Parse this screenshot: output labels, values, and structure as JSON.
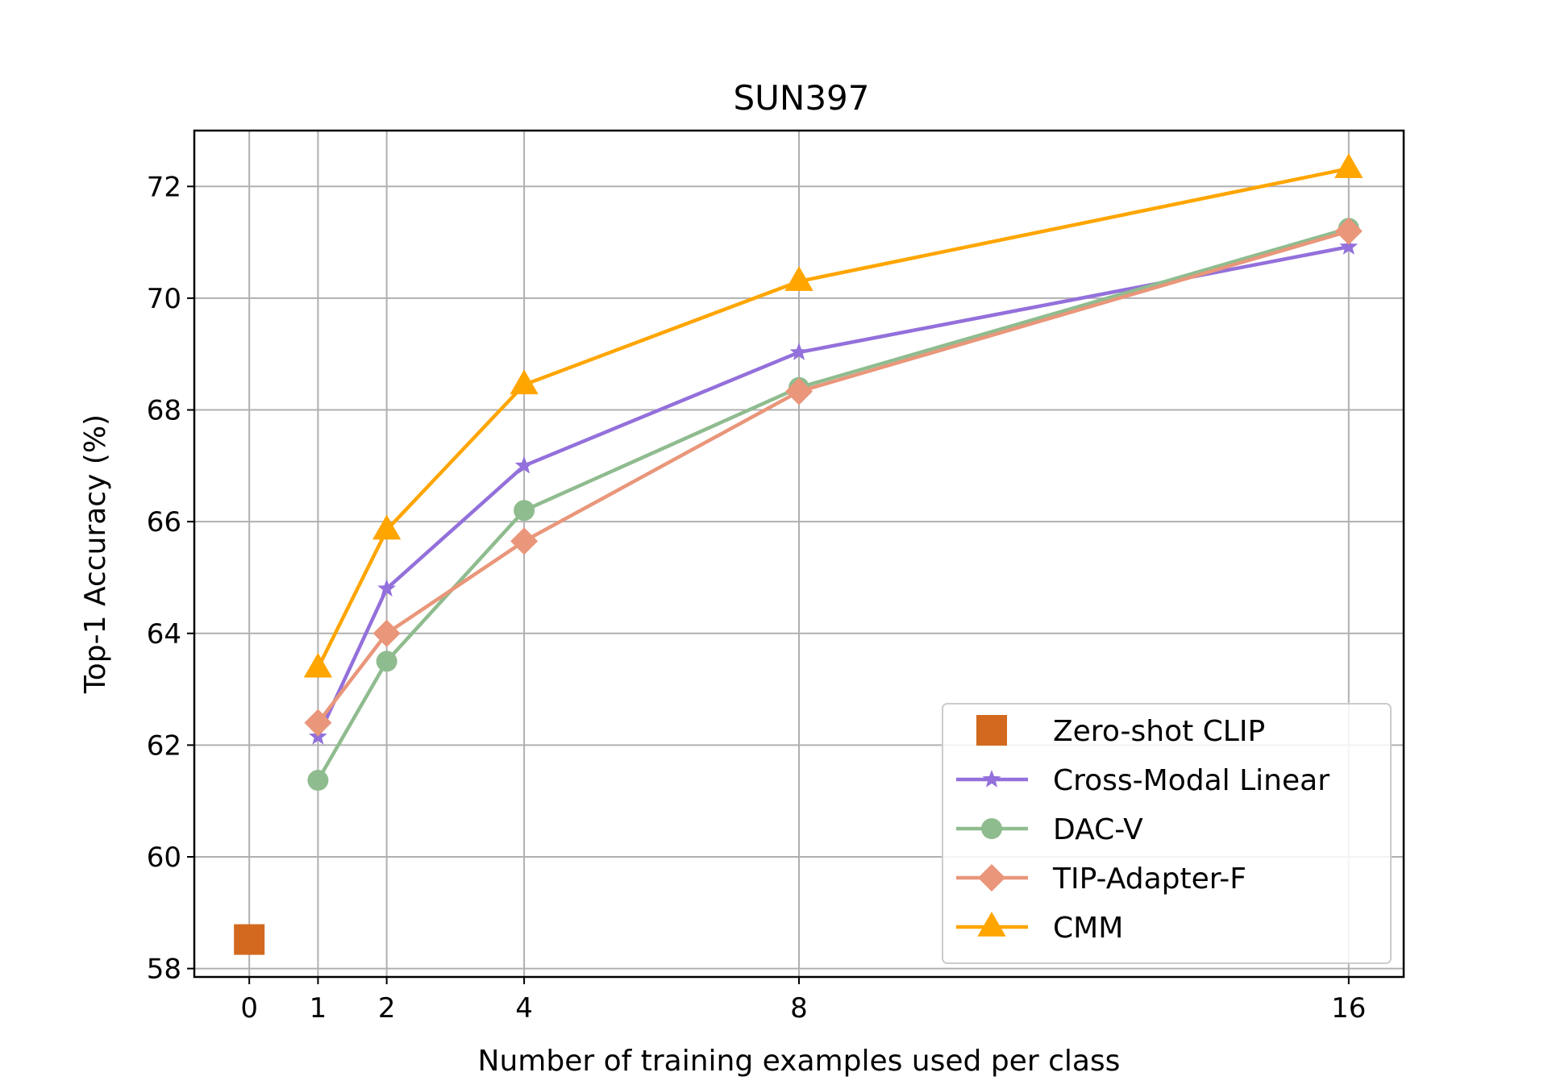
{
  "chart_data": {
    "type": "line",
    "title": "SUN397",
    "xlabel": "Number of training examples used per class",
    "ylabel": "Top-1 Accuracy (%)",
    "xlim": [
      -0.8,
      16.8
    ],
    "ylim": [
      57.85,
      73.0
    ],
    "xticks": [
      0,
      1,
      2,
      4,
      8,
      16
    ],
    "xtick_labels": [
      "0",
      "1",
      "2",
      "4",
      "8",
      "16"
    ],
    "yticks": [
      58,
      60,
      62,
      64,
      66,
      68,
      70,
      72
    ],
    "ytick_labels": [
      "58",
      "60",
      "62",
      "64",
      "66",
      "68",
      "70",
      "72"
    ],
    "grid": true,
    "legend_position": "lower-right",
    "series": [
      {
        "name": "Zero-shot CLIP",
        "marker": "square",
        "color": "#d2691e",
        "line": false,
        "x": [
          0
        ],
        "y": [
          58.52
        ]
      },
      {
        "name": "Cross-Modal Linear",
        "marker": "star",
        "color": "#9370db",
        "line": true,
        "x": [
          1,
          2,
          4,
          8,
          16
        ],
        "y": [
          62.15,
          64.8,
          67.0,
          69.03,
          70.92
        ]
      },
      {
        "name": "DAC-V",
        "marker": "circle",
        "color": "#8fbc8f",
        "line": true,
        "x": [
          1,
          2,
          4,
          8,
          16
        ],
        "y": [
          61.37,
          63.5,
          66.2,
          68.4,
          71.25
        ]
      },
      {
        "name": "TIP-Adapter-F",
        "marker": "diamond",
        "color": "#e9967a",
        "line": true,
        "x": [
          1,
          2,
          4,
          8,
          16
        ],
        "y": [
          62.4,
          64.0,
          65.65,
          68.33,
          71.2
        ]
      },
      {
        "name": "CMM",
        "marker": "triangle",
        "color": "#ffa500",
        "line": true,
        "x": [
          1,
          2,
          4,
          8,
          16
        ],
        "y": [
          63.38,
          65.85,
          68.45,
          70.3,
          72.32
        ]
      }
    ]
  }
}
